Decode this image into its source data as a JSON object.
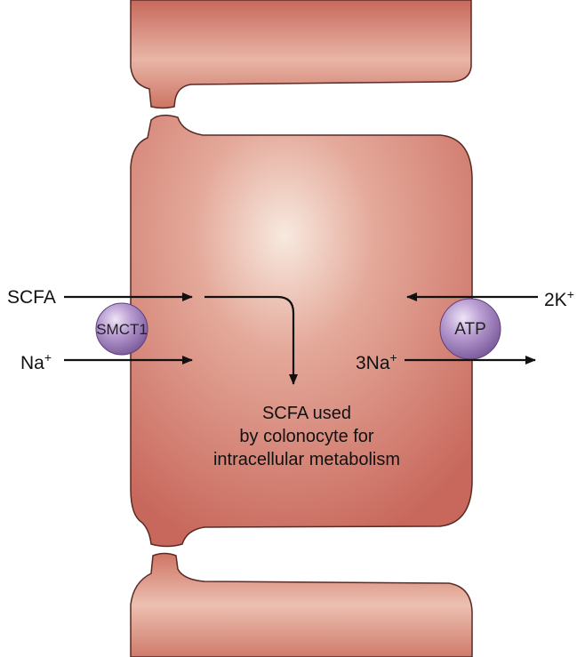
{
  "labels": {
    "scfa_in": "SCFA",
    "na_in": "Na",
    "na_in_sup": "+",
    "k_in_prefix": "2K",
    "k_in_sup": "+",
    "na_out_prefix": "3Na",
    "na_out_sup": "+"
  },
  "transporters": {
    "smct1": "SMCT1",
    "pump": "ATP"
  },
  "usage_text": {
    "line1": "SCFA used",
    "line2": "by colonocyte for",
    "line3": "intracellular metabolism"
  },
  "colors": {
    "cell_fill": "#c8685c",
    "cell_highlight": "#f7e6dc",
    "cell_outline": "#5a2a24",
    "transporter_fill": "#b699cf",
    "arrow": "#111111"
  }
}
